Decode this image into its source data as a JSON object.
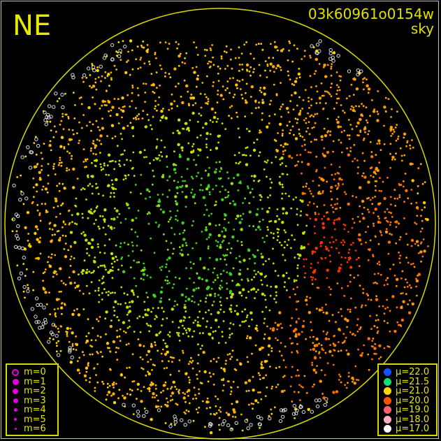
{
  "header": {
    "direction": "NE",
    "image_id": "03k60961o0154w",
    "mode": "sky"
  },
  "chart_data": {
    "type": "scatter",
    "title": "03k60961o0154w",
    "subtitle": "sky",
    "grid": false,
    "colors": {
      "frame": "#d8d800",
      "background": "#000000"
    },
    "magnitude_legend": {
      "placement": "bottom-left",
      "color": "#e000e0",
      "entries": [
        {
          "label": "m=0",
          "hollow": true
        },
        {
          "label": "m=1"
        },
        {
          "label": "m=2"
        },
        {
          "label": "m=3"
        },
        {
          "label": "m=4"
        },
        {
          "label": "m=5"
        },
        {
          "label": "m=6"
        }
      ]
    },
    "brightness_legend": {
      "placement": "bottom-right",
      "entries": [
        {
          "label": "μ=22.0",
          "color": "#1450ff"
        },
        {
          "label": "μ=21.5",
          "color": "#10e070"
        },
        {
          "label": "μ=21.0",
          "color": "#ffd800"
        },
        {
          "label": "μ=20.0",
          "color": "#ff5000"
        },
        {
          "label": "μ=19.0",
          "color": "#ff6070"
        },
        {
          "label": "μ=18.0",
          "color": "#ffb0c0"
        },
        {
          "label": "μ=17.0",
          "color": "#ffffff"
        }
      ]
    }
  }
}
